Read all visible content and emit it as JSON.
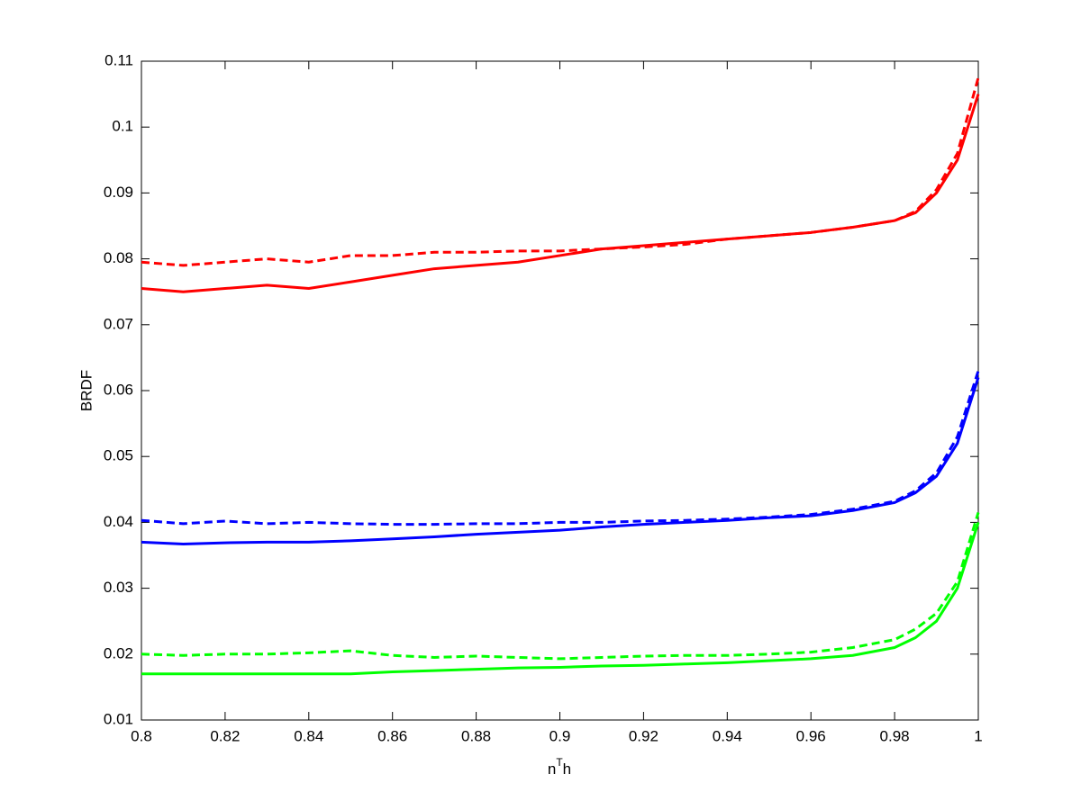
{
  "chart_data": {
    "type": "line",
    "xlabel_parts": [
      "n",
      "T",
      "h"
    ],
    "ylabel": "BRDF",
    "x": [
      0.8,
      0.81,
      0.82,
      0.83,
      0.84,
      0.85,
      0.86,
      0.87,
      0.88,
      0.89,
      0.9,
      0.91,
      0.92,
      0.93,
      0.94,
      0.95,
      0.96,
      0.97,
      0.98,
      0.985,
      0.99,
      0.995,
      1.0
    ],
    "xlim": [
      0.8,
      1
    ],
    "ylim": [
      0.01,
      0.11
    ],
    "xticks": [
      0.8,
      0.82,
      0.84,
      0.86,
      0.88,
      0.9,
      0.92,
      0.94,
      0.96,
      0.98,
      1
    ],
    "yticks": [
      0.01,
      0.02,
      0.03,
      0.04,
      0.05,
      0.06,
      0.07,
      0.08,
      0.09,
      0.1,
      0.11
    ],
    "grid": false,
    "series": [
      {
        "color": "#ff0000",
        "dashed": false,
        "values": [
          0.0755,
          0.075,
          0.0755,
          0.076,
          0.0755,
          0.0765,
          0.0775,
          0.0785,
          0.079,
          0.0795,
          0.0805,
          0.0815,
          0.082,
          0.0825,
          0.083,
          0.0835,
          0.084,
          0.0848,
          0.0858,
          0.087,
          0.09,
          0.095,
          0.105
        ]
      },
      {
        "color": "#ff0000",
        "dashed": true,
        "values": [
          0.0795,
          0.079,
          0.0795,
          0.08,
          0.0795,
          0.0805,
          0.0805,
          0.081,
          0.081,
          0.0812,
          0.0812,
          0.0815,
          0.0818,
          0.0822,
          0.083,
          0.0835,
          0.084,
          0.0848,
          0.0858,
          0.0872,
          0.0905,
          0.096,
          0.1075
        ]
      },
      {
        "color": "#0000ff",
        "dashed": false,
        "values": [
          0.037,
          0.0367,
          0.0369,
          0.037,
          0.037,
          0.0372,
          0.0375,
          0.0378,
          0.0382,
          0.0385,
          0.0388,
          0.0393,
          0.0397,
          0.04,
          0.0403,
          0.0407,
          0.041,
          0.0418,
          0.043,
          0.0445,
          0.047,
          0.052,
          0.062
        ]
      },
      {
        "color": "#0000ff",
        "dashed": true,
        "values": [
          0.0403,
          0.0398,
          0.0402,
          0.0398,
          0.04,
          0.0398,
          0.0397,
          0.0397,
          0.0398,
          0.0398,
          0.04,
          0.04,
          0.0402,
          0.0403,
          0.0405,
          0.0408,
          0.0412,
          0.042,
          0.0432,
          0.0448,
          0.0475,
          0.053,
          0.063
        ]
      },
      {
        "color": "#00ff00",
        "dashed": false,
        "values": [
          0.017,
          0.017,
          0.017,
          0.017,
          0.017,
          0.017,
          0.0173,
          0.0175,
          0.0177,
          0.0179,
          0.018,
          0.0182,
          0.0183,
          0.0185,
          0.0187,
          0.019,
          0.0193,
          0.0198,
          0.021,
          0.0225,
          0.025,
          0.03,
          0.04
        ]
      },
      {
        "color": "#00ff00",
        "dashed": true,
        "values": [
          0.02,
          0.0198,
          0.02,
          0.02,
          0.0202,
          0.0205,
          0.0198,
          0.0195,
          0.0197,
          0.0195,
          0.0193,
          0.0195,
          0.0197,
          0.0198,
          0.0198,
          0.02,
          0.0203,
          0.021,
          0.0222,
          0.0238,
          0.0262,
          0.031,
          0.0415
        ]
      }
    ]
  }
}
